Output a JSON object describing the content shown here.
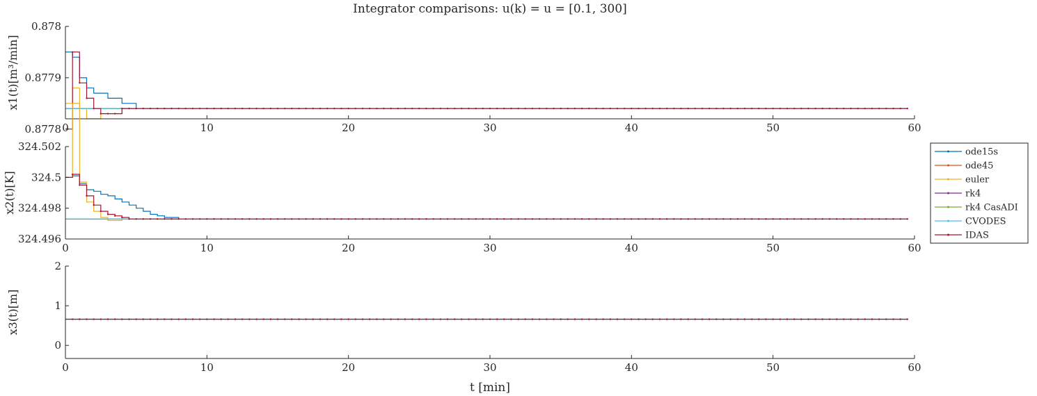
{
  "figure": {
    "title": "Integrator comparisons: u(k) = u = [0.1, 300]",
    "xlabel": "t [min]"
  },
  "legend": {
    "placement": "right-middle",
    "entries": [
      {
        "name": "ode15s",
        "color": "#0072BD"
      },
      {
        "name": "ode45",
        "color": "#D95319"
      },
      {
        "name": "euler",
        "color": "#EDB120"
      },
      {
        "name": "rk4",
        "color": "#7E2F8E"
      },
      {
        "name": "rk4 CasADI",
        "color": "#77AC30"
      },
      {
        "name": "CVODES",
        "color": "#4DBEEE"
      },
      {
        "name": "IDAS",
        "color": "#A2142F"
      }
    ]
  },
  "chart_data": [
    {
      "type": "line",
      "ylabel": "x1(t)[m³/min]",
      "xlim": [
        0,
        60
      ],
      "ylim": [
        0.87782,
        0.878
      ],
      "xticks": [
        0,
        10,
        20,
        30,
        40,
        50,
        60
      ],
      "yticks": [
        0.8778,
        0.8779,
        0.878
      ],
      "ytick_labels": [
        "0.8778",
        "0.8779",
        "0.878"
      ],
      "grid": false,
      "series": [
        {
          "name": "ode15s",
          "x": [
            0,
            0.5,
            1,
            1.5,
            2,
            2.5,
            3,
            3.5,
            4,
            4.5,
            5,
            5.5,
            6,
            7,
            8,
            9,
            10,
            11,
            11.5
          ],
          "y": [
            0.87795,
            0.87794,
            0.8779,
            0.87788,
            0.87787,
            0.87787,
            0.87786,
            0.87786,
            0.87785,
            0.87785,
            0.87784,
            0.87784,
            0.87784,
            0.87784,
            0.87784,
            0.87784,
            0.87784,
            0.87784,
            0.87784
          ]
        },
        {
          "name": "euler",
          "x": [
            0,
            0.5,
            1,
            1.5,
            2,
            2.5,
            3,
            3.5,
            4,
            4.5,
            5,
            5.5,
            6
          ],
          "y": [
            0.87785,
            0.87788,
            0.87784,
            0.87782,
            0.87782,
            0.87783,
            0.87783,
            0.87783,
            0.87784,
            0.87784,
            0.87784,
            0.87784,
            0.87784
          ]
        },
        {
          "name": "ode45",
          "x": [
            0,
            59.5
          ],
          "y": [
            0.87784,
            0.87784
          ]
        },
        {
          "name": "rk4",
          "x": [
            0,
            59.5
          ],
          "y": [
            0.87784,
            0.87784
          ]
        },
        {
          "name": "rk4 CasADI",
          "x": [
            0,
            59.5
          ],
          "y": [
            0.87784,
            0.87784
          ]
        },
        {
          "name": "CVODES",
          "x": [
            0,
            59.5
          ],
          "y": [
            0.87784,
            0.87784
          ]
        },
        {
          "name": "IDAS",
          "x": [
            0,
            0.5,
            1,
            1.5,
            2,
            2.5,
            3,
            3.5,
            4,
            4.5,
            5,
            5.5,
            6,
            59.5
          ],
          "y": [
            0.8778,
            0.87795,
            0.87789,
            0.87786,
            0.87784,
            0.87783,
            0.87783,
            0.87783,
            0.87784,
            0.87784,
            0.87784,
            0.87784,
            0.87784,
            0.87784
          ]
        }
      ]
    },
    {
      "type": "line",
      "ylabel": "x2(t)[K]",
      "xlim": [
        0,
        60
      ],
      "ylim": [
        324.496,
        324.502
      ],
      "xticks": [
        0,
        10,
        20,
        30,
        40,
        50,
        60
      ],
      "yticks": [
        324.496,
        324.498,
        324.5,
        324.502
      ],
      "ytick_labels": [
        "324.496",
        "324.498",
        "324.5",
        "324.502"
      ],
      "grid": false,
      "series": [
        {
          "name": "ode15s",
          "x": [
            0,
            0.5,
            1,
            1.5,
            2,
            2.5,
            3,
            3.5,
            4,
            4.5,
            5,
            5.5,
            6,
            6.5,
            7,
            7.5,
            8,
            9,
            10,
            11,
            12,
            13,
            14,
            15,
            16
          ],
          "y": [
            324.5,
            324.5001,
            324.4996,
            324.4992,
            324.4991,
            324.4989,
            324.4988,
            324.4986,
            324.4984,
            324.4982,
            324.498,
            324.4978,
            324.4976,
            324.4975,
            324.4974,
            324.4974,
            324.4973,
            324.4973,
            324.4973,
            324.4973,
            324.4973,
            324.4973,
            324.4973,
            324.4973,
            324.4973
          ]
        },
        {
          "name": "euler",
          "x": [
            0,
            0.5,
            1,
            1.5,
            2,
            2.5,
            3,
            3.5,
            4,
            4.5,
            5
          ],
          "y": [
            324.5,
            324.5048,
            324.4997,
            324.4984,
            324.4978,
            324.4974,
            324.4972,
            324.4972,
            324.4973,
            324.4973,
            324.4973
          ]
        },
        {
          "name": "ode45",
          "x": [
            0,
            59.5
          ],
          "y": [
            324.4973,
            324.4973
          ]
        },
        {
          "name": "rk4",
          "x": [
            0,
            59.5
          ],
          "y": [
            324.4973,
            324.4973
          ]
        },
        {
          "name": "rk4 CasADI",
          "x": [
            0,
            59.5
          ],
          "y": [
            324.4973,
            324.4973
          ]
        },
        {
          "name": "CVODES",
          "x": [
            0,
            59.5
          ],
          "y": [
            324.4973,
            324.4973
          ]
        },
        {
          "name": "IDAS",
          "x": [
            0,
            0.5,
            1,
            1.5,
            2,
            2.5,
            3,
            3.5,
            4,
            4.5,
            5,
            59.5
          ],
          "y": [
            324.5,
            324.5002,
            324.4995,
            324.4988,
            324.4982,
            324.4978,
            324.4976,
            324.4975,
            324.4974,
            324.4973,
            324.4973,
            324.4973
          ]
        }
      ]
    },
    {
      "type": "line",
      "ylabel": "x3(t)[m]",
      "xlim": [
        0,
        60
      ],
      "ylim": [
        -0.33,
        2
      ],
      "xticks": [
        0,
        10,
        20,
        30,
        40,
        50,
        60
      ],
      "yticks": [
        0,
        1,
        2
      ],
      "ytick_labels": [
        "0",
        "1",
        "2"
      ],
      "grid": false,
      "series": [
        {
          "name": "ode15s",
          "x": [
            0,
            59.5
          ],
          "y": [
            0.659,
            0.659
          ]
        },
        {
          "name": "IDAS",
          "x": [
            0,
            59.5
          ],
          "y": [
            0.659,
            0.659
          ]
        }
      ]
    }
  ]
}
